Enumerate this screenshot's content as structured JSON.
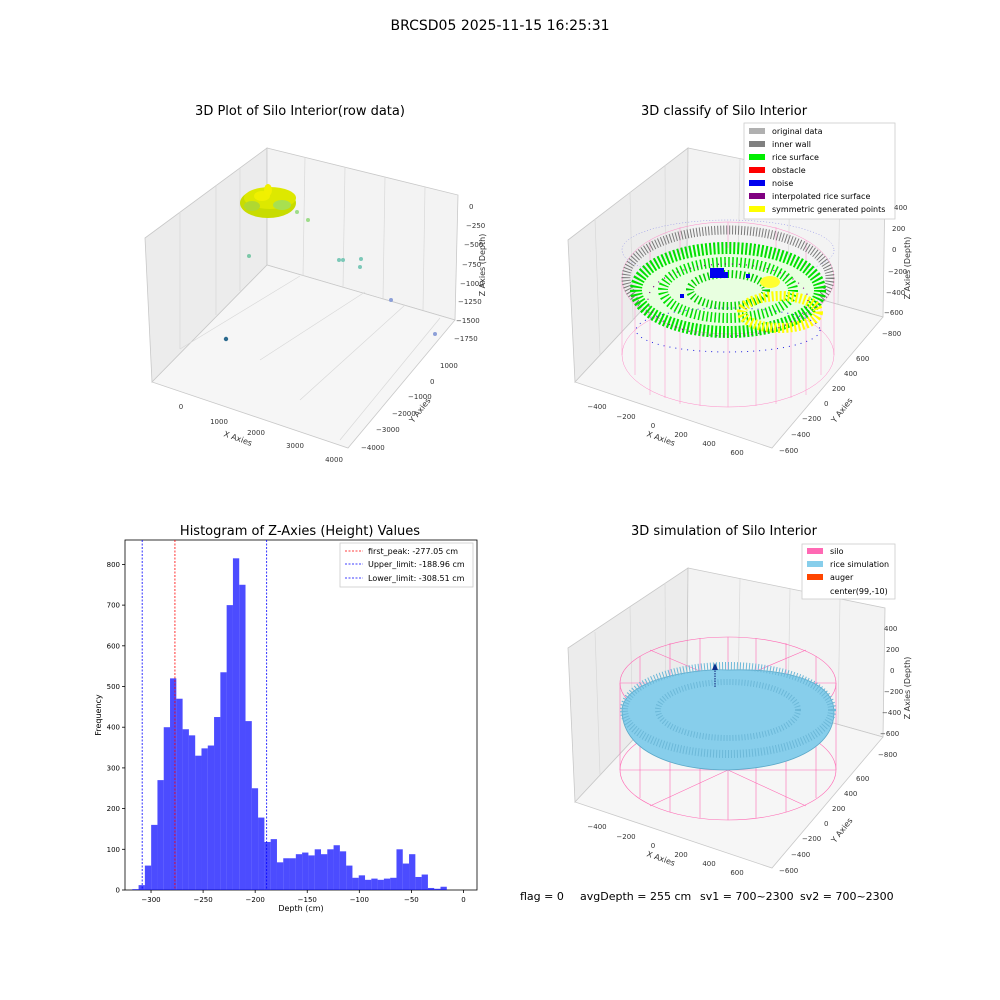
{
  "suptitle": "BRCSD05 2025-11-15 16:25:31",
  "panels": {
    "raw": {
      "title": "3D Plot of Silo Interior(row data)",
      "xlabel": "X Axies",
      "ylabel": "Y Axies",
      "zlabel": "Z Axies (Depth)",
      "x_ticks": [
        "0",
        "1000",
        "2000",
        "3000",
        "4000"
      ],
      "y_ticks": [
        "1000",
        "0",
        "−1000",
        "−2000",
        "−3000",
        "−4000"
      ],
      "z_ticks": [
        "0",
        "−250",
        "−500",
        "−750",
        "−1000",
        "−1250",
        "−1500",
        "−1750"
      ]
    },
    "classify": {
      "title": "3D classify of Silo Interior",
      "xlabel": "X Axies",
      "ylabel": "Y Axies",
      "zlabel": "Z Axies (Depth)",
      "x_ticks": [
        "−400",
        "−200",
        "0",
        "200",
        "400",
        "600"
      ],
      "y_ticks": [
        "600",
        "400",
        "200",
        "0",
        "−200",
        "−400",
        "−600"
      ],
      "z_ticks": [
        "400",
        "200",
        "0",
        "−200",
        "−400",
        "−600",
        "−800"
      ],
      "legend": [
        {
          "label": "original data",
          "color": "#b0b0b0"
        },
        {
          "label": "inner wall",
          "color": "#808080"
        },
        {
          "label": "rice surface",
          "color": "#00ee00"
        },
        {
          "label": "obstacle",
          "color": "#ff0000"
        },
        {
          "label": "noise",
          "color": "#0000ee"
        },
        {
          "label": "interpolated rice surface",
          "color": "#800080"
        },
        {
          "label": "symmetric generated points",
          "color": "#ffff00"
        }
      ]
    },
    "simulation": {
      "title": "3D simulation of Silo Interior",
      "xlabel": "X Axies",
      "ylabel": "Y Axies",
      "zlabel": "Z Axies (Depth)",
      "x_ticks": [
        "−400",
        "−200",
        "0",
        "200",
        "400",
        "600"
      ],
      "y_ticks": [
        "600",
        "400",
        "200",
        "0",
        "−200",
        "−400",
        "−600"
      ],
      "z_ticks": [
        "400",
        "200",
        "0",
        "−200",
        "−400",
        "−600",
        "−800"
      ],
      "legend": [
        {
          "label": "silo",
          "color": "#ff69b4"
        },
        {
          "label": "rice simulation",
          "color": "#87ceeb"
        },
        {
          "label": "auger",
          "color": "#ff4500"
        },
        {
          "label": "center(99,-10)",
          "color": "none"
        }
      ]
    }
  },
  "chart_data": {
    "type": "bar",
    "title": "Histogram of Z-Axies (Height) Values",
    "xlabel": "Depth (cm)",
    "ylabel": "Frequency",
    "xlim": [
      -325,
      13
    ],
    "ylim": [
      0,
      860
    ],
    "x_ticks": [
      -300,
      -250,
      -200,
      -150,
      -100,
      -50,
      0
    ],
    "x_tick_labels": [
      "−300",
      "−250",
      "−200",
      "−150",
      "−100",
      "−50",
      "0"
    ],
    "y_ticks": [
      0,
      100,
      200,
      300,
      400,
      500,
      600,
      700,
      800
    ],
    "bar_color": "#0000ff",
    "bin_start": -318,
    "bin_width": 6.04,
    "values": [
      2,
      12,
      60,
      160,
      270,
      400,
      520,
      470,
      395,
      380,
      330,
      348,
      355,
      425,
      535,
      700,
      815,
      750,
      415,
      250,
      178,
      118,
      125,
      68,
      78,
      78,
      88,
      92,
      85,
      100,
      88,
      100,
      110,
      95,
      60,
      30,
      36,
      25,
      28,
      25,
      28,
      30,
      100,
      65,
      88,
      32,
      38,
      5,
      3,
      8
    ],
    "lines": [
      {
        "label": "first_peak: -277.05 cm",
        "x": -277.05,
        "color": "#ff0000"
      },
      {
        "label": "Upper_limit: -188.96 cm",
        "x": -188.96,
        "color": "#0000ff"
      },
      {
        "label": "Lower_limit: -308.51 cm",
        "x": -308.51,
        "color": "#0000ff"
      }
    ],
    "legend_position": "upper right"
  },
  "footer": {
    "flag": "flag = 0",
    "avg": "avgDepth = 255 cm",
    "sv1": "sv1 = 700~2300",
    "sv2": "sv2 = 700~2300"
  }
}
